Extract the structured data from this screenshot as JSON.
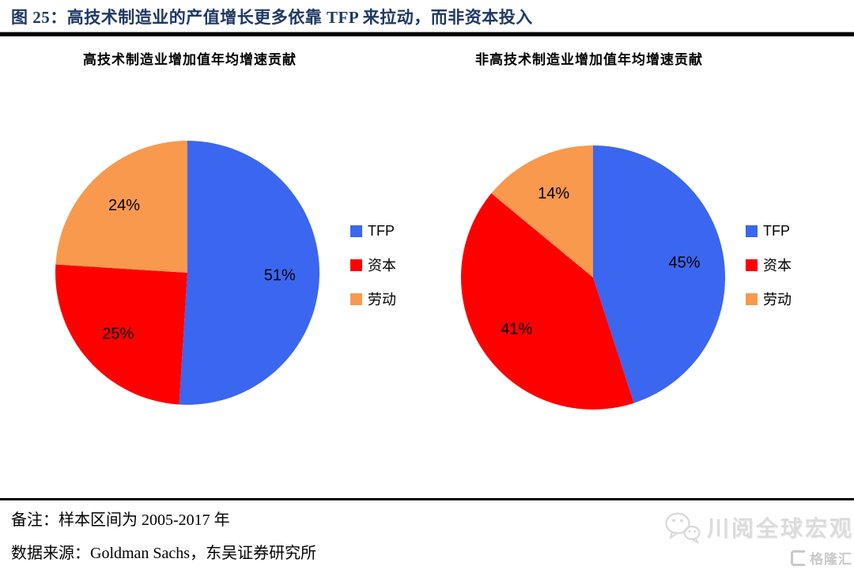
{
  "page": {
    "title": "图 25：高技术制造业的产值增长更多依靠 TFP 来拉动，而非资本投入",
    "note": "备注：样本区间为 2005-2017 年",
    "source": "数据来源：Goldman Sachs，东吴证券研究所",
    "watermark_text": "川阅全球宏观",
    "logo_text": "格隆汇",
    "colors": {
      "title_text": "#1F3864",
      "tfp_blue": "#3B66F0",
      "capital_red": "#FE0000",
      "labor_orange": "#F8994E",
      "watermark_gray": "#D9D9D9"
    }
  },
  "chart_data": [
    {
      "type": "pie",
      "title": "高技术制造业增加值年均增速贡献",
      "labels": [
        "TFP",
        "资本",
        "劳动"
      ],
      "ids": [
        "tfp",
        "capital",
        "labor"
      ],
      "values": [
        51,
        25,
        24
      ],
      "value_suffix": "%",
      "colors": [
        "#3B66F0",
        "#FE0000",
        "#F8994E"
      ],
      "start_angle_deg": 0,
      "direction": "clockwise",
      "legend_position": "right",
      "data_labels": "inside"
    },
    {
      "type": "pie",
      "title": "非高技术制造业增加值年均增速贡献",
      "labels": [
        "TFP",
        "资本",
        "劳动"
      ],
      "ids": [
        "tfp",
        "capital",
        "labor"
      ],
      "values": [
        45,
        41,
        14
      ],
      "value_suffix": "%",
      "colors": [
        "#3B66F0",
        "#FE0000",
        "#F8994E"
      ],
      "start_angle_deg": 0,
      "direction": "clockwise",
      "legend_position": "right",
      "data_labels": "inside"
    }
  ]
}
